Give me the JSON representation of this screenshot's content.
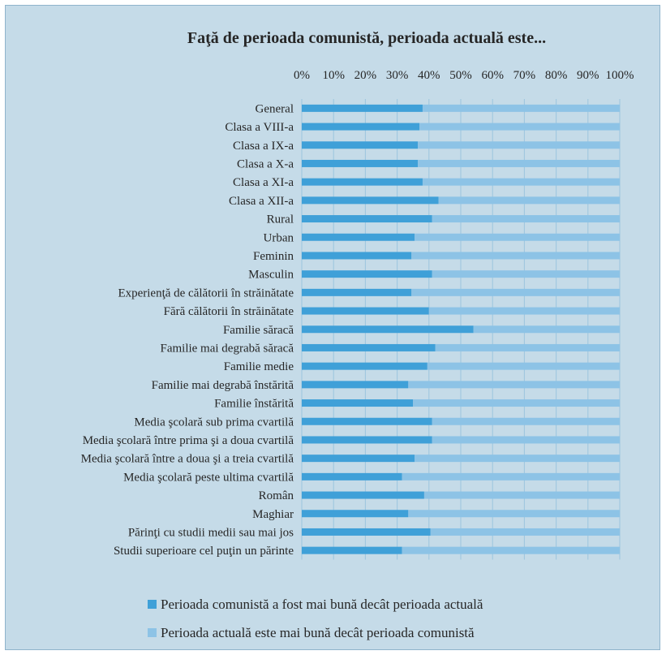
{
  "chart_data": {
    "type": "bar",
    "orientation": "horizontal",
    "stacked": "percent",
    "title": "Faţă de perioada comunistă, perioada actuală este...",
    "xlabel": "",
    "ylabel": "",
    "xlim": [
      0,
      100
    ],
    "x_ticks": [
      "0%",
      "10%",
      "20%",
      "30%",
      "40%",
      "50%",
      "60%",
      "70%",
      "80%",
      "90%",
      "100%"
    ],
    "x_axis_position": "top",
    "grid": true,
    "legend_position": "bottom",
    "categories": [
      "General",
      "Clasa a VIII-a",
      "Clasa a IX-a",
      "Clasa a X-a",
      "Clasa a XI-a",
      "Clasa a XII-a",
      "Rural",
      "Urban",
      "Feminin",
      "Masculin",
      "Experienţă de călătorii în străinătate",
      "Fără călătorii în străinătate",
      "Familie săracă",
      "Familie mai degrabă săracă",
      "Familie medie",
      "Familie mai degrabă înstărită",
      "Familie înstărită",
      "Media şcolară sub prima cvartilă",
      "Media şcolară între prima şi a doua cvartilă",
      "Media şcolară între a doua şi a treia cvartilă",
      "Media şcolară peste ultima cvartilă",
      "Român",
      "Maghiar",
      "Părinţi cu studii medii sau mai jos",
      "Studii superioare cel puţin un părinte"
    ],
    "series": [
      {
        "name": "Perioada comunistă a fost mai bună decât perioada actuală",
        "color": "#3fa0d8",
        "values": [
          38,
          37,
          36.5,
          36.5,
          38,
          43,
          41,
          35.5,
          34.5,
          41,
          34.5,
          40,
          54,
          42,
          39.5,
          33.5,
          35,
          41,
          41,
          35.5,
          31.5,
          38.5,
          33.5,
          40.5,
          31.5
        ]
      },
      {
        "name": "Perioada actuală este mai bună decât perioada comunistă",
        "color": "#8dc3e6",
        "values": [
          62,
          63,
          63.5,
          63.5,
          62,
          57,
          59,
          64.5,
          65.5,
          59,
          65.5,
          60,
          46,
          58,
          60.5,
          66.5,
          65,
          59,
          59,
          64.5,
          68.5,
          61.5,
          66.5,
          59.5,
          68.5
        ]
      }
    ]
  }
}
